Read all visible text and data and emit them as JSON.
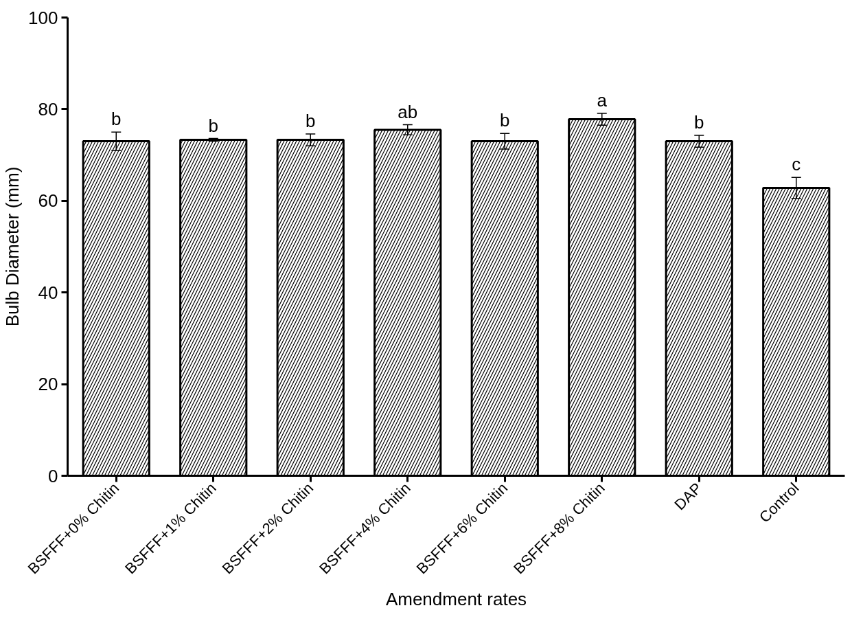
{
  "chart_data": {
    "type": "bar",
    "xlabel": "Amendment rates",
    "ylabel": "Bulb Diameter (mm)",
    "categories": [
      "BSFFF+0% Chitin",
      "BSFFF+1% Chitin",
      "BSFFF+2% Chitin",
      "BSFFF+4% Chitin",
      "BSFFF+6% Chitin",
      "BSFFF+8% Chitin",
      "DAP",
      "Control"
    ],
    "series": [
      {
        "color": "#ffffff",
        "values": [
          73.0,
          73.3,
          73.3,
          75.5,
          73.0,
          77.8,
          73.0,
          62.8
        ],
        "errors": [
          2.0,
          0.3,
          1.3,
          1.1,
          1.7,
          1.3,
          1.3,
          2.3
        ]
      }
    ],
    "ylim": [
      0,
      100
    ],
    "yticks": [
      0,
      20,
      40,
      60,
      80,
      100
    ],
    "grid": false,
    "annotations": [
      {
        "text": "b",
        "x": "BSFFF+0% Chitin",
        "y": 75.0
      },
      {
        "text": "b",
        "x": "BSFFF+1% Chitin",
        "y": 73.6
      },
      {
        "text": "b",
        "x": "BSFFF+2% Chitin",
        "y": 74.6
      },
      {
        "text": "ab",
        "x": "BSFFF+4% Chitin",
        "y": 76.6
      },
      {
        "text": "b",
        "x": "BSFFF+6% Chitin",
        "y": 74.7
      },
      {
        "text": "a",
        "x": "BSFFF+8% Chitin",
        "y": 79.1
      },
      {
        "text": "b",
        "x": "DAP",
        "y": 74.3
      },
      {
        "text": "c",
        "x": "Control",
        "y": 65.1
      }
    ]
  }
}
